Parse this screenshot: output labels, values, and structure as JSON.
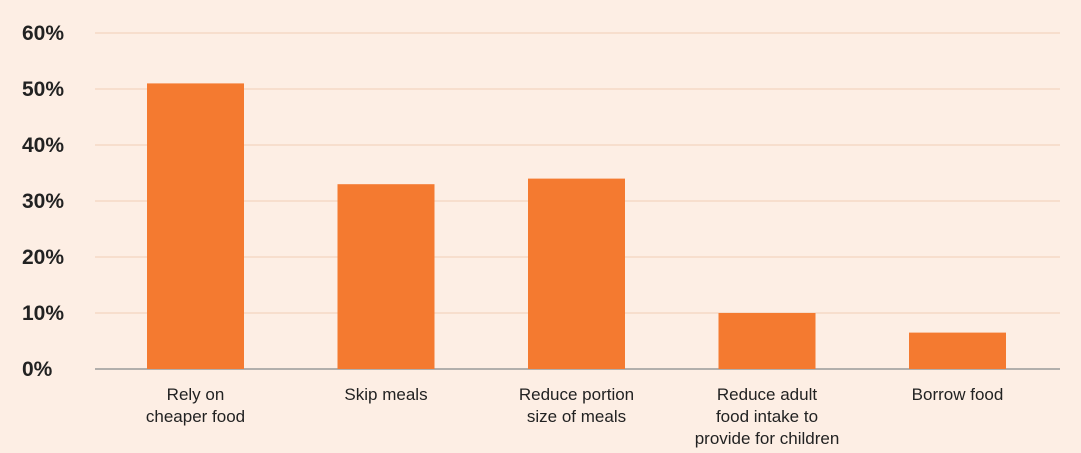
{
  "chart_data": {
    "type": "bar",
    "title": "",
    "xlabel": "",
    "ylabel": "",
    "categories": [
      [
        "Rely on",
        "cheaper food"
      ],
      [
        "Skip meals"
      ],
      [
        "Reduce portion",
        "size of meals"
      ],
      [
        "Reduce adult",
        "food intake to",
        "provide for children"
      ],
      [
        "Borrow food"
      ]
    ],
    "values": [
      51,
      33,
      34,
      10,
      6.5
    ],
    "ylim": [
      0,
      60
    ],
    "yticks": [
      0,
      10,
      20,
      30,
      40,
      50,
      60
    ],
    "ytick_labels": [
      "0%",
      "10%",
      "20%",
      "30%",
      "40%",
      "50%",
      "60%"
    ],
    "grid": true,
    "legend": "none",
    "colors": {
      "bar": "#f47a30",
      "background": "#fdeee4",
      "grid": "#f1cdb6",
      "text": "#222222"
    }
  }
}
